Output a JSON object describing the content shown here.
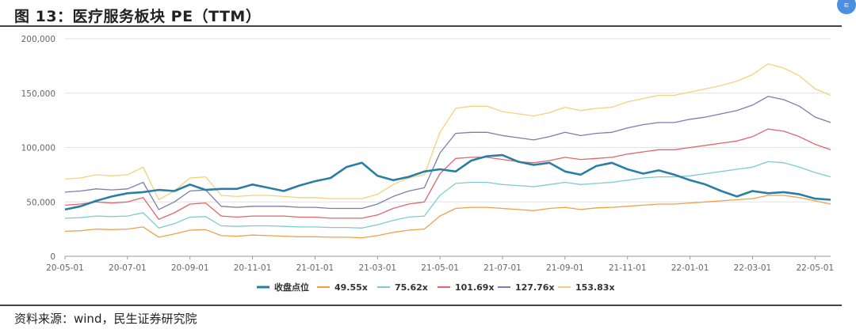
{
  "header": {
    "title": "图 13：医疗服务板块 PE（TTM）"
  },
  "footer": {
    "source": "资料来源：wind，民生证券研究院"
  },
  "chart_data": {
    "type": "line",
    "title": "",
    "xlabel": "",
    "ylabel": "",
    "ylim": [
      0,
      200000
    ],
    "yticks": [
      "0",
      "50,000",
      "100,000",
      "150,000",
      "200,000"
    ],
    "xticks": [
      "20-05-01",
      "20-07-01",
      "20-09-01",
      "20-11-01",
      "21-01-01",
      "21-03-01",
      "21-05-01",
      "21-07-01",
      "21-09-01",
      "21-11-01",
      "22-01-01",
      "22-03-01",
      "22-05-01"
    ],
    "grid": true,
    "legend_position": "bottom",
    "x": [
      "20-05-01",
      "20-05-15",
      "20-06-01",
      "20-06-15",
      "20-07-01",
      "20-07-15",
      "20-08-01",
      "20-08-15",
      "20-09-01",
      "20-09-15",
      "20-10-01",
      "20-10-15",
      "20-11-01",
      "20-11-15",
      "20-12-01",
      "20-12-15",
      "21-01-01",
      "21-01-15",
      "21-02-01",
      "21-02-15",
      "21-03-01",
      "21-03-15",
      "21-04-01",
      "21-04-15",
      "21-05-01",
      "21-05-15",
      "21-06-01",
      "21-06-15",
      "21-07-01",
      "21-07-15",
      "21-08-01",
      "21-08-15",
      "21-09-01",
      "21-09-15",
      "21-10-01",
      "21-10-15",
      "21-11-01",
      "21-11-15",
      "21-12-01",
      "21-12-15",
      "22-01-01",
      "22-01-15",
      "22-02-01",
      "22-02-15",
      "22-03-01",
      "22-03-15",
      "22-04-01",
      "22-04-15",
      "22-05-01",
      "22-05-15"
    ],
    "series": [
      {
        "name": "收盘点位",
        "color": "#2a7ea3",
        "values": [
          43000,
          46000,
          51000,
          55000,
          58000,
          59000,
          61000,
          60000,
          66000,
          61000,
          62000,
          62000,
          66000,
          63000,
          60000,
          65000,
          69000,
          72000,
          82000,
          86000,
          74000,
          70000,
          73000,
          78000,
          80000,
          78000,
          88000,
          92000,
          93000,
          87000,
          84000,
          86000,
          78000,
          75000,
          83000,
          86000,
          80000,
          76000,
          79000,
          75000,
          70000,
          66000,
          60000,
          55000,
          60000,
          58000,
          59000,
          57000,
          53000,
          52000
        ]
      },
      {
        "name": "49.55x",
        "color": "#f0a04b",
        "values": [
          23000,
          23500,
          25000,
          24500,
          25000,
          27000,
          17500,
          20500,
          24000,
          24500,
          19000,
          18500,
          19500,
          19000,
          18500,
          18000,
          18000,
          17500,
          17500,
          17000,
          19000,
          22000,
          24000,
          25000,
          37000,
          44000,
          45000,
          45000,
          44000,
          43000,
          42000,
          44000,
          45000,
          43000,
          44500,
          45000,
          46000,
          47000,
          48000,
          48000,
          49000,
          50000,
          51000,
          52000,
          53000,
          56000,
          56000,
          54000,
          51000,
          48000
        ]
      },
      {
        "name": "75.62x",
        "color": "#7ecbcf",
        "values": [
          35000,
          35500,
          37000,
          36500,
          37000,
          40000,
          26000,
          30000,
          36000,
          36500,
          28000,
          27500,
          28000,
          28000,
          27500,
          27000,
          27000,
          26500,
          26500,
          26000,
          29000,
          33000,
          36000,
          37000,
          56000,
          67000,
          68000,
          68000,
          66000,
          65000,
          64000,
          66000,
          68000,
          66000,
          67000,
          68000,
          70000,
          72000,
          73000,
          73000,
          74000,
          76000,
          78000,
          80000,
          82000,
          87000,
          86000,
          82000,
          77000,
          73000
        ]
      },
      {
        "name": "101.69x",
        "color": "#e4646b",
        "values": [
          47000,
          48000,
          50000,
          49000,
          50000,
          54000,
          34000,
          40000,
          48000,
          49000,
          37000,
          36000,
          37000,
          37000,
          37000,
          36000,
          36000,
          35000,
          35000,
          35000,
          38000,
          44000,
          48000,
          50000,
          76000,
          90000,
          91000,
          91000,
          89000,
          87000,
          86000,
          88000,
          91000,
          89000,
          90000,
          91000,
          94000,
          96000,
          98000,
          98000,
          100000,
          102000,
          104000,
          106000,
          110000,
          117000,
          115000,
          110000,
          103000,
          98000
        ]
      },
      {
        "name": "127.76x",
        "color": "#7d7cae",
        "values": [
          59000,
          60000,
          62000,
          61000,
          62000,
          68000,
          43000,
          50000,
          60000,
          61000,
          46000,
          45000,
          46000,
          46000,
          46000,
          45000,
          45000,
          44000,
          44000,
          44000,
          48000,
          55000,
          60000,
          63000,
          95000,
          113000,
          114000,
          114000,
          111000,
          109000,
          107000,
          110000,
          114000,
          111000,
          113000,
          114000,
          118000,
          121000,
          123000,
          123000,
          126000,
          128000,
          131000,
          134000,
          139000,
          147000,
          144000,
          138000,
          128000,
          123000
        ]
      },
      {
        "name": "153.83x",
        "color": "#f2d27a",
        "values": [
          71000,
          72000,
          75000,
          74000,
          75000,
          82000,
          52000,
          60000,
          72000,
          73000,
          56000,
          55000,
          56000,
          56000,
          55000,
          54000,
          54000,
          53000,
          53000,
          53000,
          57000,
          66000,
          72000,
          75000,
          114000,
          136000,
          138000,
          138000,
          133000,
          131000,
          129000,
          132000,
          137000,
          134000,
          136000,
          137000,
          142000,
          145000,
          148000,
          148000,
          151000,
          154000,
          157000,
          161000,
          167000,
          177000,
          173000,
          166000,
          154000,
          148000
        ]
      }
    ]
  }
}
